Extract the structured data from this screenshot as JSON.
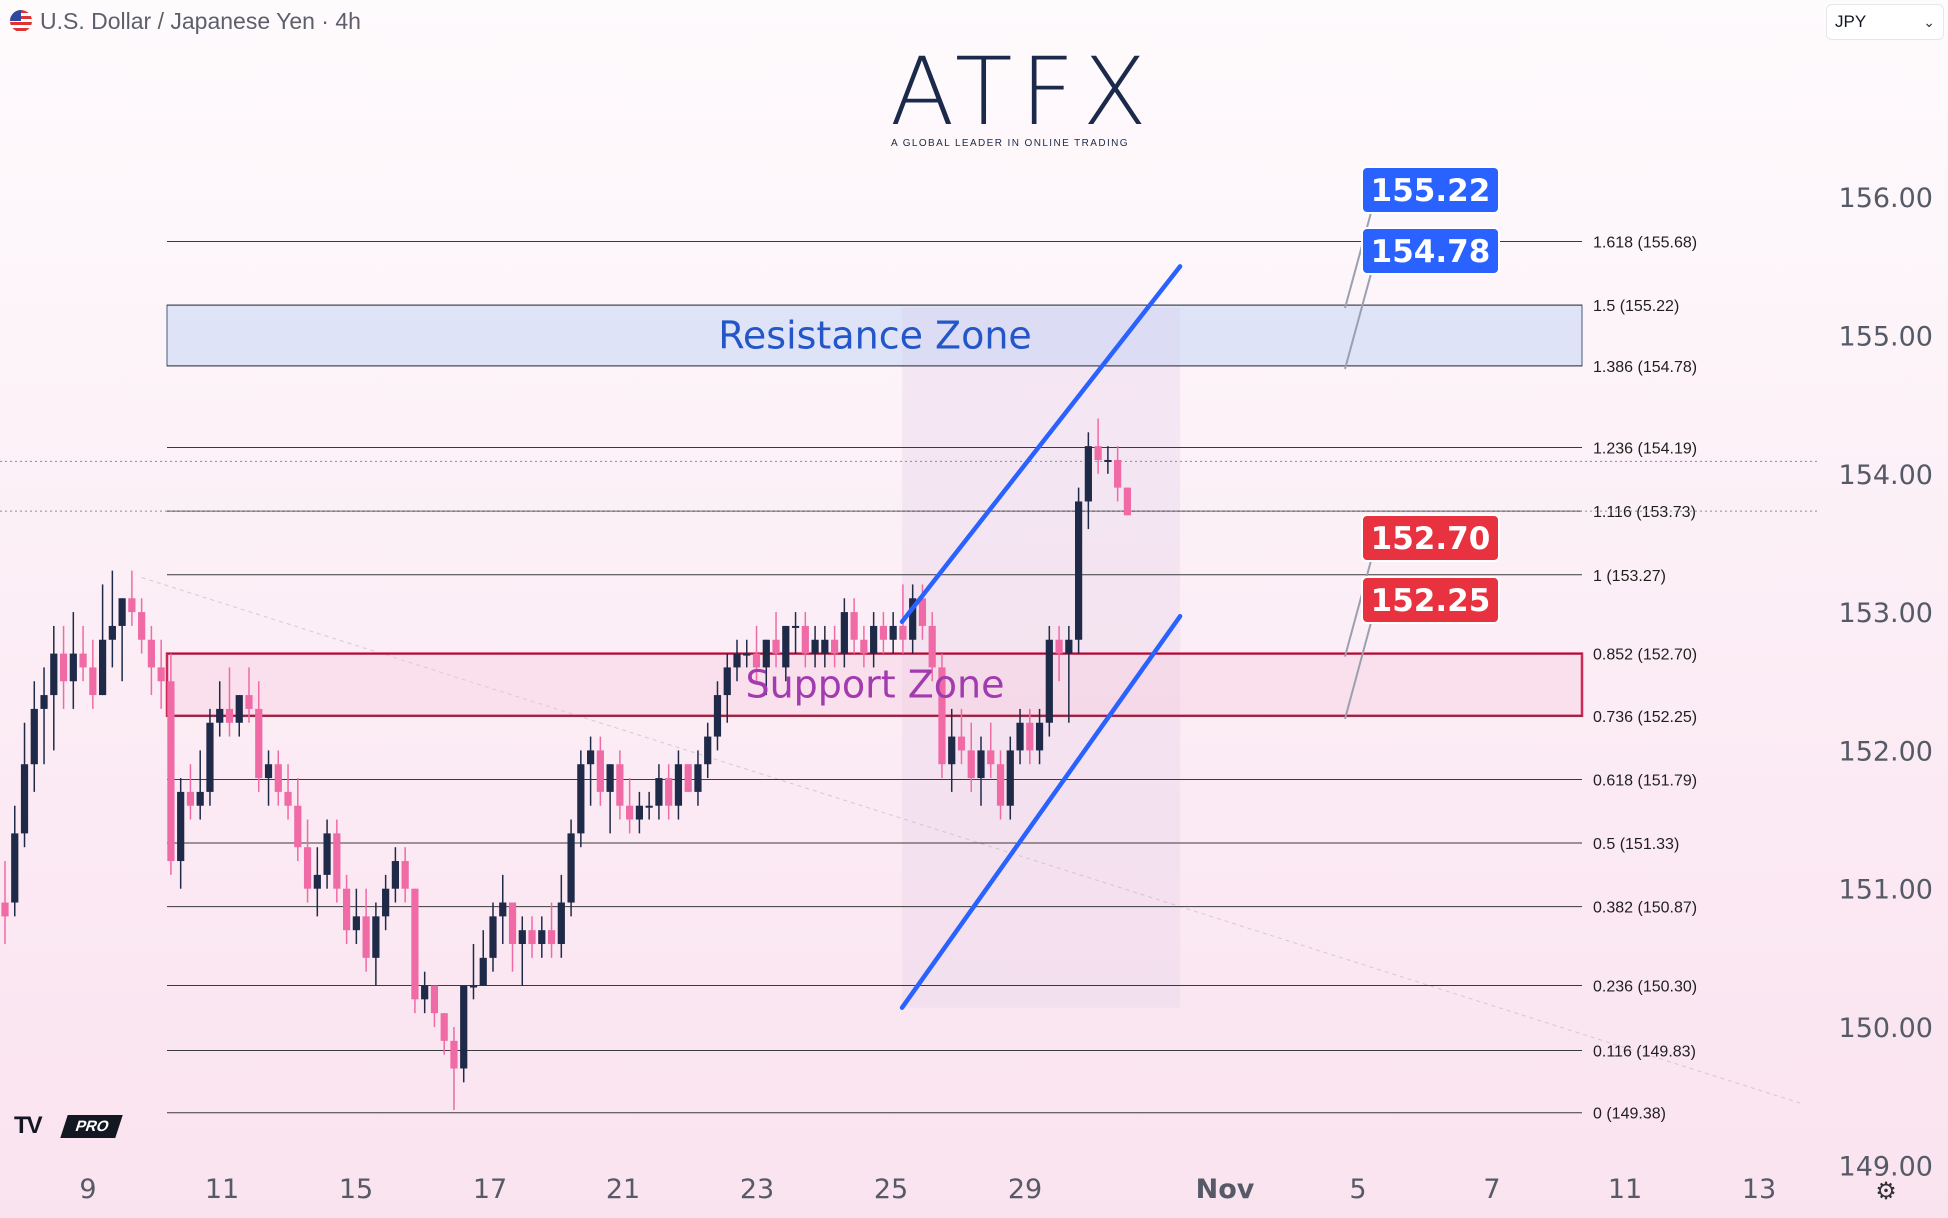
{
  "header": {
    "title": "U.S. Dollar / Japanese Yen · 4h",
    "flag_icon": "usd-jpy-flag-icon"
  },
  "currency_selector": {
    "value": "JPY"
  },
  "logo": {
    "wordmark": "ATFX",
    "tagline": "A GLOBAL LEADER IN ONLINE TRADING"
  },
  "watermark": {
    "brand": "TV",
    "badge": "PRO"
  },
  "colors": {
    "bull": "#1e2a48",
    "bear": "#f06aa5",
    "channel": "#2962ff",
    "resistance": "#c6d6f5",
    "support_border": "#cc2a55",
    "tag_blue": "#2962ff",
    "tag_red": "#e8323f"
  },
  "chart_data": {
    "type": "candlestick",
    "title": "",
    "xlabel": "",
    "ylabel": "",
    "ylim": [
      148.2,
      156.6
    ],
    "y_ticks": [
      "156.00",
      "155.00",
      "154.00",
      "153.00",
      "152.00",
      "151.00",
      "150.00",
      "149.00"
    ],
    "x_ticks": [
      "9",
      "11",
      "15",
      "17",
      "21",
      "23",
      "25",
      "29",
      "Nov",
      "5",
      "7",
      "11",
      "13"
    ],
    "fib_levels": [
      {
        "label": "1.618 (155.68)",
        "value": 155.68
      },
      {
        "label": "1.5 (155.22)",
        "value": 155.22
      },
      {
        "label": "1.386 (154.78)",
        "value": 154.78
      },
      {
        "label": "1.236 (154.19)",
        "value": 154.19
      },
      {
        "label": "1.116 (153.73)",
        "value": 153.73
      },
      {
        "label": "1 (153.27)",
        "value": 153.27
      },
      {
        "label": "0.852 (152.70)",
        "value": 152.7
      },
      {
        "label": "0.736 (152.25)",
        "value": 152.25
      },
      {
        "label": "0.618 (151.79)",
        "value": 151.79
      },
      {
        "label": "0.5 (151.33)",
        "value": 151.33
      },
      {
        "label": "0.382 (150.87)",
        "value": 150.87
      },
      {
        "label": "0.236 (150.30)",
        "value": 150.3
      },
      {
        "label": "0.116 (149.83)",
        "value": 149.83
      },
      {
        "label": "0 (149.38)",
        "value": 149.38
      }
    ],
    "zones": [
      {
        "label": "Resistance Zone",
        "low": 154.78,
        "high": 155.22,
        "kind": "resistance"
      },
      {
        "label": "Support Zone",
        "low": 152.25,
        "high": 152.7,
        "kind": "support"
      }
    ],
    "price_tags": [
      {
        "text": "155.22",
        "value": 155.22,
        "kind": "resistance"
      },
      {
        "text": "154.78",
        "value": 154.78,
        "kind": "resistance"
      },
      {
        "text": "152.70",
        "value": 152.7,
        "kind": "support"
      },
      {
        "text": "152.25",
        "value": 152.25,
        "kind": "support"
      }
    ],
    "channel": {
      "upper": [
        [
          24.3,
          152.93
        ],
        [
          32.6,
          155.5
        ]
      ],
      "lower": [
        [
          24.3,
          150.14
        ],
        [
          32.6,
          152.97
        ]
      ]
    },
    "current_price": 154.09,
    "candles": [
      {
        "t": 0,
        "o": 150.9,
        "h": 151.2,
        "l": 150.6,
        "c": 150.8
      },
      {
        "t": 1,
        "o": 150.9,
        "h": 151.6,
        "l": 150.8,
        "c": 151.4
      },
      {
        "t": 2,
        "o": 151.4,
        "h": 152.2,
        "l": 151.3,
        "c": 151.9
      },
      {
        "t": 3,
        "o": 151.9,
        "h": 152.5,
        "l": 151.7,
        "c": 152.3
      },
      {
        "t": 4,
        "o": 152.3,
        "h": 152.6,
        "l": 151.9,
        "c": 152.4
      },
      {
        "t": 5,
        "o": 152.4,
        "h": 152.9,
        "l": 152.0,
        "c": 152.7
      },
      {
        "t": 6,
        "o": 152.7,
        "h": 152.9,
        "l": 152.3,
        "c": 152.5
      },
      {
        "t": 7,
        "o": 152.5,
        "h": 153.0,
        "l": 152.3,
        "c": 152.7
      },
      {
        "t": 8,
        "o": 152.7,
        "h": 152.9,
        "l": 152.5,
        "c": 152.6
      },
      {
        "t": 9,
        "o": 152.6,
        "h": 152.8,
        "l": 152.3,
        "c": 152.4
      },
      {
        "t": 10,
        "o": 152.4,
        "h": 153.2,
        "l": 152.4,
        "c": 152.8
      },
      {
        "t": 11,
        "o": 152.8,
        "h": 153.3,
        "l": 152.6,
        "c": 152.9
      },
      {
        "t": 12,
        "o": 152.9,
        "h": 153.1,
        "l": 152.5,
        "c": 153.1
      },
      {
        "t": 13,
        "o": 153.1,
        "h": 153.3,
        "l": 152.9,
        "c": 153.0
      },
      {
        "t": 14,
        "o": 153.0,
        "h": 153.1,
        "l": 152.7,
        "c": 152.8
      },
      {
        "t": 15,
        "o": 152.8,
        "h": 152.9,
        "l": 152.4,
        "c": 152.6
      },
      {
        "t": 16,
        "o": 152.6,
        "h": 152.8,
        "l": 152.3,
        "c": 152.5
      },
      {
        "t": 17,
        "o": 152.5,
        "h": 152.7,
        "l": 151.1,
        "c": 151.2
      },
      {
        "t": 18,
        "o": 151.2,
        "h": 151.8,
        "l": 151.0,
        "c": 151.7
      },
      {
        "t": 19,
        "o": 151.7,
        "h": 151.9,
        "l": 151.5,
        "c": 151.6
      },
      {
        "t": 20,
        "o": 151.6,
        "h": 152.0,
        "l": 151.5,
        "c": 151.7
      },
      {
        "t": 21,
        "o": 151.7,
        "h": 152.3,
        "l": 151.6,
        "c": 152.2
      },
      {
        "t": 22,
        "o": 152.2,
        "h": 152.5,
        "l": 152.1,
        "c": 152.3
      },
      {
        "t": 23,
        "o": 152.3,
        "h": 152.6,
        "l": 152.1,
        "c": 152.2
      },
      {
        "t": 24,
        "o": 152.2,
        "h": 152.4,
        "l": 152.1,
        "c": 152.4
      },
      {
        "t": 25,
        "o": 152.4,
        "h": 152.6,
        "l": 152.2,
        "c": 152.3
      },
      {
        "t": 26,
        "o": 152.3,
        "h": 152.5,
        "l": 151.7,
        "c": 151.8
      },
      {
        "t": 27,
        "o": 151.8,
        "h": 152.0,
        "l": 151.6,
        "c": 151.9
      },
      {
        "t": 28,
        "o": 151.9,
        "h": 152.0,
        "l": 151.6,
        "c": 151.7
      },
      {
        "t": 29,
        "o": 151.7,
        "h": 151.9,
        "l": 151.5,
        "c": 151.6
      },
      {
        "t": 30,
        "o": 151.6,
        "h": 151.8,
        "l": 151.2,
        "c": 151.3
      },
      {
        "t": 31,
        "o": 151.3,
        "h": 151.5,
        "l": 150.9,
        "c": 151.0
      },
      {
        "t": 32,
        "o": 151.0,
        "h": 151.3,
        "l": 150.8,
        "c": 151.1
      },
      {
        "t": 33,
        "o": 151.1,
        "h": 151.5,
        "l": 151.0,
        "c": 151.4
      },
      {
        "t": 34,
        "o": 151.4,
        "h": 151.5,
        "l": 150.9,
        "c": 151.0
      },
      {
        "t": 35,
        "o": 151.0,
        "h": 151.1,
        "l": 150.6,
        "c": 150.7
      },
      {
        "t": 36,
        "o": 150.7,
        "h": 151.0,
        "l": 150.6,
        "c": 150.8
      },
      {
        "t": 37,
        "o": 150.8,
        "h": 151.0,
        "l": 150.4,
        "c": 150.5
      },
      {
        "t": 38,
        "o": 150.5,
        "h": 150.9,
        "l": 150.3,
        "c": 150.8
      },
      {
        "t": 39,
        "o": 150.8,
        "h": 151.1,
        "l": 150.7,
        "c": 151.0
      },
      {
        "t": 40,
        "o": 151.0,
        "h": 151.3,
        "l": 150.9,
        "c": 151.2
      },
      {
        "t": 41,
        "o": 151.2,
        "h": 151.3,
        "l": 150.9,
        "c": 151.0
      },
      {
        "t": 42,
        "o": 151.0,
        "h": 151.0,
        "l": 150.1,
        "c": 150.2
      },
      {
        "t": 43,
        "o": 150.2,
        "h": 150.4,
        "l": 150.1,
        "c": 150.3
      },
      {
        "t": 44,
        "o": 150.3,
        "h": 150.3,
        "l": 150.0,
        "c": 150.1
      },
      {
        "t": 45,
        "o": 150.1,
        "h": 150.1,
        "l": 149.8,
        "c": 149.9
      },
      {
        "t": 46,
        "o": 149.9,
        "h": 150.0,
        "l": 149.4,
        "c": 149.7
      },
      {
        "t": 47,
        "o": 149.7,
        "h": 150.3,
        "l": 149.6,
        "c": 150.3
      },
      {
        "t": 48,
        "o": 150.3,
        "h": 150.6,
        "l": 150.2,
        "c": 150.3
      },
      {
        "t": 49,
        "o": 150.3,
        "h": 150.7,
        "l": 150.3,
        "c": 150.5
      },
      {
        "t": 50,
        "o": 150.5,
        "h": 150.9,
        "l": 150.4,
        "c": 150.8
      },
      {
        "t": 51,
        "o": 150.8,
        "h": 151.1,
        "l": 150.6,
        "c": 150.9
      },
      {
        "t": 52,
        "o": 150.9,
        "h": 150.9,
        "l": 150.4,
        "c": 150.6
      },
      {
        "t": 53,
        "o": 150.6,
        "h": 150.8,
        "l": 150.3,
        "c": 150.7
      },
      {
        "t": 54,
        "o": 150.7,
        "h": 150.8,
        "l": 150.5,
        "c": 150.6
      },
      {
        "t": 55,
        "o": 150.6,
        "h": 150.8,
        "l": 150.5,
        "c": 150.7
      },
      {
        "t": 56,
        "o": 150.7,
        "h": 150.9,
        "l": 150.5,
        "c": 150.6
      },
      {
        "t": 57,
        "o": 150.6,
        "h": 151.1,
        "l": 150.5,
        "c": 150.9
      },
      {
        "t": 58,
        "o": 150.9,
        "h": 151.5,
        "l": 150.8,
        "c": 151.4
      },
      {
        "t": 59,
        "o": 151.4,
        "h": 152.0,
        "l": 151.3,
        "c": 151.9
      },
      {
        "t": 60,
        "o": 151.9,
        "h": 152.1,
        "l": 151.6,
        "c": 152.0
      },
      {
        "t": 61,
        "o": 152.0,
        "h": 152.1,
        "l": 151.6,
        "c": 151.7
      },
      {
        "t": 62,
        "o": 151.7,
        "h": 151.9,
        "l": 151.4,
        "c": 151.9
      },
      {
        "t": 63,
        "o": 151.9,
        "h": 152.0,
        "l": 151.5,
        "c": 151.6
      },
      {
        "t": 64,
        "o": 151.6,
        "h": 151.8,
        "l": 151.4,
        "c": 151.5
      },
      {
        "t": 65,
        "o": 151.5,
        "h": 151.7,
        "l": 151.4,
        "c": 151.6
      },
      {
        "t": 66,
        "o": 151.6,
        "h": 151.7,
        "l": 151.5,
        "c": 151.6
      },
      {
        "t": 67,
        "o": 151.6,
        "h": 151.9,
        "l": 151.5,
        "c": 151.8
      },
      {
        "t": 68,
        "o": 151.8,
        "h": 151.9,
        "l": 151.5,
        "c": 151.6
      },
      {
        "t": 69,
        "o": 151.6,
        "h": 152.0,
        "l": 151.5,
        "c": 151.9
      },
      {
        "t": 70,
        "o": 151.9,
        "h": 151.9,
        "l": 151.7,
        "c": 151.7
      },
      {
        "t": 71,
        "o": 151.7,
        "h": 152.0,
        "l": 151.6,
        "c": 151.9
      },
      {
        "t": 72,
        "o": 151.9,
        "h": 152.2,
        "l": 151.8,
        "c": 152.1
      },
      {
        "t": 73,
        "o": 152.1,
        "h": 152.5,
        "l": 152.0,
        "c": 152.4
      },
      {
        "t": 74,
        "o": 152.4,
        "h": 152.7,
        "l": 152.2,
        "c": 152.6
      },
      {
        "t": 75,
        "o": 152.6,
        "h": 152.8,
        "l": 152.5,
        "c": 152.7
      },
      {
        "t": 76,
        "o": 152.7,
        "h": 152.8,
        "l": 152.6,
        "c": 152.7
      },
      {
        "t": 77,
        "o": 152.7,
        "h": 152.9,
        "l": 152.5,
        "c": 152.6
      },
      {
        "t": 78,
        "o": 152.6,
        "h": 152.8,
        "l": 152.4,
        "c": 152.8
      },
      {
        "t": 79,
        "o": 152.8,
        "h": 153.0,
        "l": 152.6,
        "c": 152.7
      },
      {
        "t": 80,
        "o": 152.6,
        "h": 152.9,
        "l": 152.5,
        "c": 152.9
      },
      {
        "t": 81,
        "o": 152.9,
        "h": 153.0,
        "l": 152.7,
        "c": 152.9
      },
      {
        "t": 82,
        "o": 152.9,
        "h": 153.0,
        "l": 152.6,
        "c": 152.7
      },
      {
        "t": 83,
        "o": 152.7,
        "h": 152.9,
        "l": 152.6,
        "c": 152.8
      },
      {
        "t": 84,
        "o": 152.7,
        "h": 152.9,
        "l": 152.6,
        "c": 152.8
      },
      {
        "t": 85,
        "o": 152.8,
        "h": 152.9,
        "l": 152.6,
        "c": 152.7
      },
      {
        "t": 86,
        "o": 152.7,
        "h": 153.1,
        "l": 152.6,
        "c": 153.0
      },
      {
        "t": 87,
        "o": 153.0,
        "h": 153.1,
        "l": 152.7,
        "c": 152.8
      },
      {
        "t": 88,
        "o": 152.8,
        "h": 152.9,
        "l": 152.6,
        "c": 152.7
      },
      {
        "t": 89,
        "o": 152.7,
        "h": 153.0,
        "l": 152.6,
        "c": 152.9
      },
      {
        "t": 90,
        "o": 152.9,
        "h": 153.0,
        "l": 152.7,
        "c": 152.8
      },
      {
        "t": 91,
        "o": 152.8,
        "h": 153.0,
        "l": 152.7,
        "c": 152.9
      },
      {
        "t": 92,
        "o": 152.9,
        "h": 153.2,
        "l": 152.7,
        "c": 152.8
      },
      {
        "t": 93,
        "o": 152.8,
        "h": 153.2,
        "l": 152.7,
        "c": 153.1
      },
      {
        "t": 94,
        "o": 153.1,
        "h": 153.2,
        "l": 152.8,
        "c": 152.9
      },
      {
        "t": 95,
        "o": 152.9,
        "h": 153.0,
        "l": 152.5,
        "c": 152.6
      },
      {
        "t": 96,
        "o": 152.6,
        "h": 152.7,
        "l": 151.8,
        "c": 151.9
      },
      {
        "t": 97,
        "o": 151.9,
        "h": 152.3,
        "l": 151.7,
        "c": 152.1
      },
      {
        "t": 98,
        "o": 152.1,
        "h": 152.3,
        "l": 151.9,
        "c": 152.0
      },
      {
        "t": 99,
        "o": 152.0,
        "h": 152.2,
        "l": 151.7,
        "c": 151.8
      },
      {
        "t": 100,
        "o": 151.8,
        "h": 152.1,
        "l": 151.6,
        "c": 152.0
      },
      {
        "t": 101,
        "o": 152.0,
        "h": 152.2,
        "l": 151.8,
        "c": 151.9
      },
      {
        "t": 102,
        "o": 151.9,
        "h": 152.0,
        "l": 151.5,
        "c": 151.6
      },
      {
        "t": 103,
        "o": 151.6,
        "h": 152.1,
        "l": 151.5,
        "c": 152.0
      },
      {
        "t": 104,
        "o": 152.0,
        "h": 152.3,
        "l": 151.9,
        "c": 152.2
      },
      {
        "t": 105,
        "o": 152.2,
        "h": 152.3,
        "l": 151.9,
        "c": 152.0
      },
      {
        "t": 106,
        "o": 152.0,
        "h": 152.3,
        "l": 151.9,
        "c": 152.2
      },
      {
        "t": 107,
        "o": 152.2,
        "h": 152.9,
        "l": 152.1,
        "c": 152.8
      },
      {
        "t": 108,
        "o": 152.8,
        "h": 152.9,
        "l": 152.5,
        "c": 152.7
      },
      {
        "t": 109,
        "o": 152.7,
        "h": 152.9,
        "l": 152.2,
        "c": 152.8
      },
      {
        "t": 110,
        "o": 152.8,
        "h": 153.9,
        "l": 152.7,
        "c": 153.8
      },
      {
        "t": 111,
        "o": 153.8,
        "h": 154.3,
        "l": 153.6,
        "c": 154.2
      },
      {
        "t": 112,
        "o": 154.2,
        "h": 154.4,
        "l": 154.0,
        "c": 154.1
      },
      {
        "t": 113,
        "o": 154.1,
        "h": 154.2,
        "l": 154.0,
        "c": 154.1
      },
      {
        "t": 114,
        "o": 154.1,
        "h": 154.2,
        "l": 153.8,
        "c": 153.9
      },
      {
        "t": 115,
        "o": 153.9,
        "h": 153.9,
        "l": 153.7,
        "c": 153.7
      }
    ]
  }
}
